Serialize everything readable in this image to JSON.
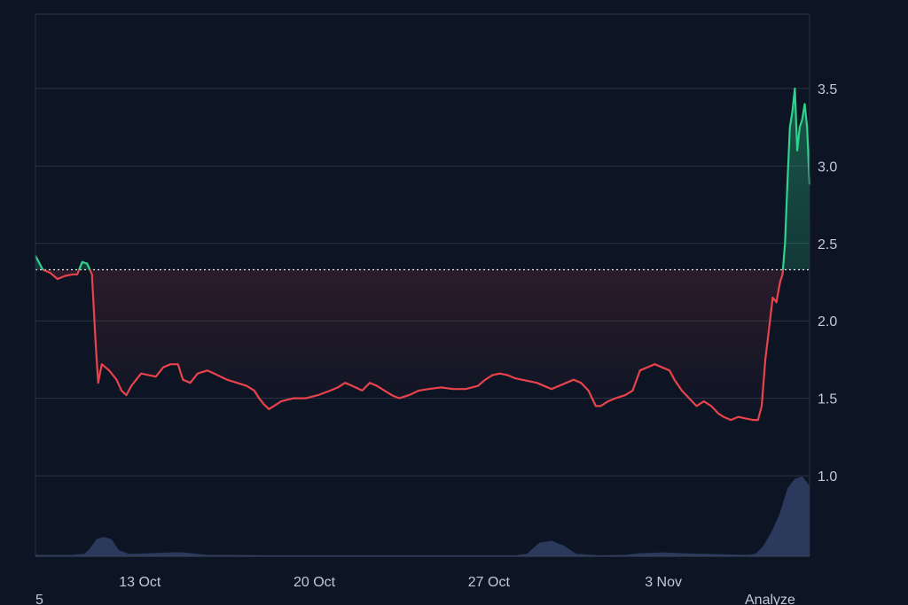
{
  "chart_data": {
    "type": "area",
    "x_ticks": [
      "13 Oct",
      "20 Oct",
      "27 Oct",
      "3 Nov"
    ],
    "y_ticks": [
      1.0,
      1.5,
      2.0,
      2.5,
      3.0,
      3.5
    ],
    "ylim": [
      0.48,
      3.98
    ],
    "xlim_day": [
      0,
      31.5
    ],
    "baseline": 2.33,
    "colors": {
      "background": "#0d1525",
      "grid": "#2a3444",
      "up": "#2fd18c",
      "down": "#e8434b",
      "volume": "#2b3a5c",
      "text": "#c3c9d4"
    },
    "x_tick_days": [
      4.25,
      11.35,
      18.45,
      25.55
    ],
    "series": [
      {
        "values": [
          [
            0.0,
            2.42
          ],
          [
            0.3,
            2.33
          ],
          [
            0.6,
            2.31
          ],
          [
            0.9,
            2.27
          ],
          [
            1.2,
            2.29
          ],
          [
            1.5,
            2.3
          ],
          [
            1.7,
            2.3
          ],
          [
            1.9,
            2.38
          ],
          [
            2.1,
            2.37
          ],
          [
            2.3,
            2.3
          ],
          [
            2.45,
            1.85
          ],
          [
            2.55,
            1.6
          ],
          [
            2.7,
            1.72
          ],
          [
            3.0,
            1.68
          ],
          [
            3.3,
            1.62
          ],
          [
            3.5,
            1.55
          ],
          [
            3.7,
            1.52
          ],
          [
            3.9,
            1.58
          ],
          [
            4.1,
            1.62
          ],
          [
            4.3,
            1.66
          ],
          [
            4.6,
            1.65
          ],
          [
            4.9,
            1.64
          ],
          [
            5.2,
            1.7
          ],
          [
            5.5,
            1.72
          ],
          [
            5.8,
            1.72
          ],
          [
            6.0,
            1.62
          ],
          [
            6.3,
            1.6
          ],
          [
            6.6,
            1.66
          ],
          [
            7.0,
            1.68
          ],
          [
            7.4,
            1.65
          ],
          [
            7.8,
            1.62
          ],
          [
            8.2,
            1.6
          ],
          [
            8.6,
            1.58
          ],
          [
            8.9,
            1.55
          ],
          [
            9.1,
            1.5
          ],
          [
            9.3,
            1.46
          ],
          [
            9.5,
            1.43
          ],
          [
            9.7,
            1.45
          ],
          [
            10.0,
            1.48
          ],
          [
            10.5,
            1.5
          ],
          [
            11.0,
            1.5
          ],
          [
            11.5,
            1.52
          ],
          [
            12.0,
            1.55
          ],
          [
            12.3,
            1.57
          ],
          [
            12.6,
            1.6
          ],
          [
            12.9,
            1.58
          ],
          [
            13.3,
            1.55
          ],
          [
            13.6,
            1.6
          ],
          [
            13.9,
            1.58
          ],
          [
            14.2,
            1.55
          ],
          [
            14.5,
            1.52
          ],
          [
            14.8,
            1.5
          ],
          [
            15.2,
            1.52
          ],
          [
            15.6,
            1.55
          ],
          [
            16.0,
            1.56
          ],
          [
            16.5,
            1.57
          ],
          [
            17.0,
            1.56
          ],
          [
            17.5,
            1.56
          ],
          [
            18.0,
            1.58
          ],
          [
            18.3,
            1.62
          ],
          [
            18.6,
            1.65
          ],
          [
            18.9,
            1.66
          ],
          [
            19.2,
            1.65
          ],
          [
            19.5,
            1.63
          ],
          [
            19.8,
            1.62
          ],
          [
            20.1,
            1.61
          ],
          [
            20.4,
            1.6
          ],
          [
            20.7,
            1.58
          ],
          [
            21.0,
            1.56
          ],
          [
            21.3,
            1.58
          ],
          [
            21.6,
            1.6
          ],
          [
            21.9,
            1.62
          ],
          [
            22.2,
            1.6
          ],
          [
            22.5,
            1.55
          ],
          [
            22.8,
            1.45
          ],
          [
            23.0,
            1.45
          ],
          [
            23.3,
            1.48
          ],
          [
            23.6,
            1.5
          ],
          [
            24.0,
            1.52
          ],
          [
            24.3,
            1.55
          ],
          [
            24.6,
            1.68
          ],
          [
            24.9,
            1.7
          ],
          [
            25.2,
            1.72
          ],
          [
            25.5,
            1.7
          ],
          [
            25.8,
            1.68
          ],
          [
            26.0,
            1.62
          ],
          [
            26.3,
            1.55
          ],
          [
            26.6,
            1.5
          ],
          [
            26.9,
            1.45
          ],
          [
            27.2,
            1.48
          ],
          [
            27.5,
            1.45
          ],
          [
            27.8,
            1.4
          ],
          [
            28.0,
            1.38
          ],
          [
            28.3,
            1.36
          ],
          [
            28.6,
            1.38
          ],
          [
            28.9,
            1.37
          ],
          [
            29.2,
            1.36
          ],
          [
            29.4,
            1.36
          ],
          [
            29.55,
            1.45
          ],
          [
            29.7,
            1.75
          ],
          [
            29.85,
            1.95
          ],
          [
            30.0,
            2.15
          ],
          [
            30.15,
            2.12
          ],
          [
            30.3,
            2.25
          ],
          [
            30.4,
            2.3
          ],
          [
            30.5,
            2.5
          ],
          [
            30.6,
            2.9
          ],
          [
            30.7,
            3.25
          ],
          [
            30.8,
            3.35
          ],
          [
            30.9,
            3.5
          ],
          [
            31.0,
            3.1
          ],
          [
            31.1,
            3.25
          ],
          [
            31.2,
            3.3
          ],
          [
            31.3,
            3.4
          ],
          [
            31.4,
            3.25
          ],
          [
            31.5,
            2.88
          ]
        ]
      }
    ],
    "volume": [
      [
        0,
        0.03
      ],
      [
        1.5,
        0.03
      ],
      [
        2.0,
        0.05
      ],
      [
        2.2,
        0.15
      ],
      [
        2.5,
        0.36
      ],
      [
        2.8,
        0.4
      ],
      [
        3.1,
        0.35
      ],
      [
        3.4,
        0.12
      ],
      [
        3.8,
        0.05
      ],
      [
        4.5,
        0.06
      ],
      [
        5.5,
        0.08
      ],
      [
        6.0,
        0.08
      ],
      [
        7.0,
        0.03
      ],
      [
        10.0,
        0.02
      ],
      [
        14.0,
        0.02
      ],
      [
        17.0,
        0.02
      ],
      [
        19.5,
        0.02
      ],
      [
        20.0,
        0.05
      ],
      [
        20.5,
        0.28
      ],
      [
        21.0,
        0.32
      ],
      [
        21.5,
        0.22
      ],
      [
        22.0,
        0.05
      ],
      [
        23.0,
        0.02
      ],
      [
        24.0,
        0.03
      ],
      [
        24.5,
        0.06
      ],
      [
        25.5,
        0.08
      ],
      [
        26.5,
        0.06
      ],
      [
        28.0,
        0.04
      ],
      [
        29.0,
        0.03
      ],
      [
        29.3,
        0.05
      ],
      [
        29.6,
        0.2
      ],
      [
        30.0,
        0.55
      ],
      [
        30.3,
        0.9
      ],
      [
        30.6,
        1.4
      ],
      [
        30.9,
        1.6
      ],
      [
        31.2,
        1.65
      ],
      [
        31.5,
        1.45
      ]
    ],
    "volume_max": 1.7
  },
  "footer": {
    "left_text": "5",
    "right_text": "Analyze"
  }
}
